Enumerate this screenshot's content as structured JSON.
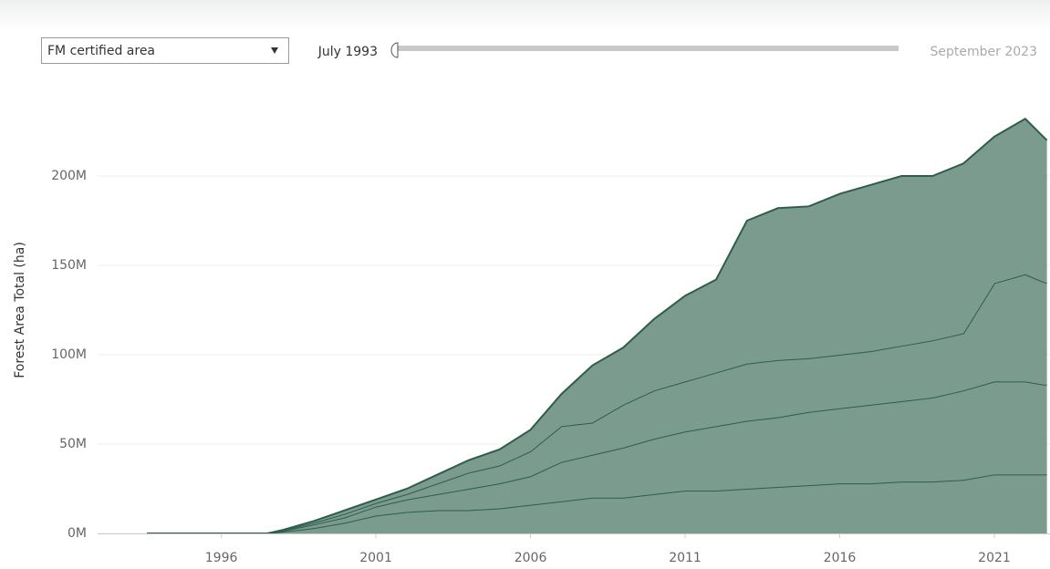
{
  "chart_data": {
    "type": "stacked_area",
    "filter": "FM certified area",
    "range_start_label": "July 1993",
    "range_end_label": "September 2023",
    "ylabel": "Forest Area Total (ha)",
    "x": [
      1993.6,
      1997.5,
      1998,
      1999,
      2000,
      2001,
      2002,
      2003,
      2004,
      2005,
      2006,
      2007,
      2008,
      2009,
      2010,
      2011,
      2012,
      2013,
      2014,
      2015,
      2016,
      2017,
      2018,
      2019,
      2020,
      2021,
      2022,
      2022.7
    ],
    "series": [
      {
        "color": "#7b9b8f",
        "values": [
          0,
          0,
          1000000.0,
          3000000.0,
          6000000.0,
          10000000.0,
          12000000.0,
          13000000.0,
          13000000.0,
          14000000.0,
          16000000.0,
          18000000.0,
          20000000.0,
          20000000.0,
          22000000.0,
          24000000.0,
          24000000.0,
          25000000.0,
          26000000.0,
          27000000.0,
          28000000.0,
          28000000.0,
          29000000.0,
          29000000.0,
          30000000.0,
          33000000.0,
          33000000.0,
          33000000.0
        ]
      },
      {
        "color": "#7b9b8f",
        "values": [
          0,
          0,
          500000.0,
          2000000.0,
          3000000.0,
          5000000.0,
          7000000.0,
          9000000.0,
          12000000.0,
          14000000.0,
          16000000.0,
          22000000.0,
          24000000.0,
          28000000.0,
          31000000.0,
          33000000.0,
          36000000.0,
          38000000.0,
          39000000.0,
          41000000.0,
          42000000.0,
          44000000.0,
          45000000.0,
          47000000.0,
          50000000.0,
          52000000.0,
          52000000.0,
          50000000.0
        ]
      },
      {
        "color": "#7b9b8f",
        "values": [
          0,
          0,
          300000.0,
          1000000.0,
          2000000.0,
          2000000.0,
          3000000.0,
          6000000.0,
          9000000.0,
          10000000.0,
          14000000.0,
          20000000.0,
          18000000.0,
          24000000.0,
          27000000.0,
          28000000.0,
          30000000.0,
          32000000.0,
          32000000.0,
          30000000.0,
          30000000.0,
          30000000.0,
          31000000.0,
          32000000.0,
          32000000.0,
          55000000.0,
          60000000.0,
          57000000.0
        ]
      },
      {
        "color": "#7b9b8f",
        "values": [
          0,
          0,
          200000.0,
          1000000.0,
          2000000.0,
          2000000.0,
          3000000.0,
          5000000.0,
          7000000.0,
          9000000.0,
          12000000.0,
          18000000.0,
          32000000.0,
          32000000.0,
          40000000.0,
          48000000.0,
          52000000.0,
          80000000.0,
          85000000.0,
          85000000.0,
          90000000.0,
          93000000.0,
          95000000.0,
          92000000.0,
          95000000.0,
          82000000.0,
          87000000.0,
          80000000.0
        ]
      }
    ],
    "line_color": "#2e5d4b",
    "xlim": [
      1992,
      2022.8
    ],
    "xticks": [
      1996,
      2001,
      2006,
      2011,
      2016,
      2021
    ],
    "ylim": [
      0,
      250000000
    ],
    "yticks": [
      {
        "value": 0,
        "label": "0M"
      },
      {
        "value": 50000000,
        "label": "50M"
      },
      {
        "value": 100000000,
        "label": "100M"
      },
      {
        "value": 150000000,
        "label": "150M"
      },
      {
        "value": 200000000,
        "label": "200M"
      }
    ],
    "grid": true
  }
}
